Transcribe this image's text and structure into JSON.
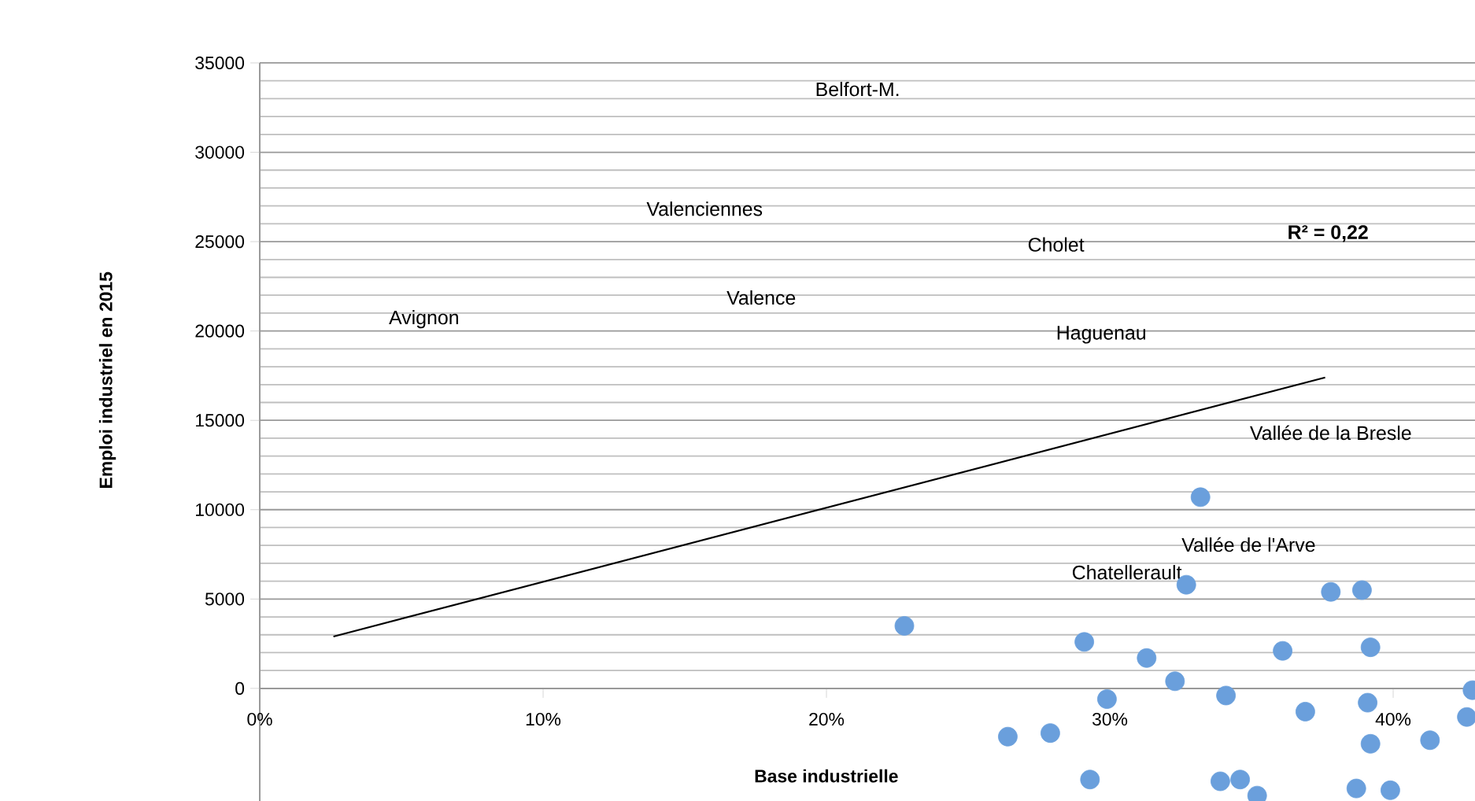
{
  "chart_data": {
    "type": "scatter",
    "xlabel": "Base industrielle",
    "ylabel": "Emploi industriel en 2015",
    "xlim": [
      0,
      0.43
    ],
    "ylim": [
      -6300,
      35000
    ],
    "xticks": [
      {
        "value": 0,
        "label": "0%"
      },
      {
        "value": 0.1,
        "label": "10%"
      },
      {
        "value": 0.2,
        "label": "20%"
      },
      {
        "value": 0.3,
        "label": "30%"
      },
      {
        "value": 0.4,
        "label": "40%"
      }
    ],
    "yticks": [
      0,
      5000,
      10000,
      15000,
      20000,
      25000,
      30000,
      35000
    ],
    "grid": "y",
    "series": [
      {
        "color": "#6a9fdc",
        "x": [
          0.2275,
          0.291,
          0.313,
          0.323,
          0.332,
          0.327,
          0.299,
          0.341,
          0.361,
          0.369,
          0.378,
          0.389,
          0.392,
          0.391,
          0.392,
          0.264,
          0.279,
          0.293,
          0.339,
          0.346,
          0.352,
          0.369,
          0.387,
          0.399,
          0.413,
          0.419,
          0.426,
          0.428
        ],
        "values": [
          3500,
          2600,
          1700,
          400,
          10700,
          5800,
          -600,
          -400,
          2100,
          -1300,
          5400,
          5500,
          2300,
          -800,
          -3100,
          -2700,
          -2500,
          -5100,
          -5200,
          -5100,
          -6000,
          null,
          -5600,
          -5700,
          -2900,
          null,
          -1600,
          -100
        ]
      },
      {
        "type": "line",
        "color": "#000000",
        "x": [
          0.026,
          0.376
        ],
        "values": [
          2900,
          17400
        ]
      }
    ],
    "annotations": [
      "Belfort-M.",
      "Valenciennes",
      "Cholet",
      "**R² = 0,22**",
      "Avignon",
      "Valence",
      "Haguenau",
      "Vallée de la Bresle",
      "Vallée de l'Arve",
      "Chatellerault"
    ]
  }
}
